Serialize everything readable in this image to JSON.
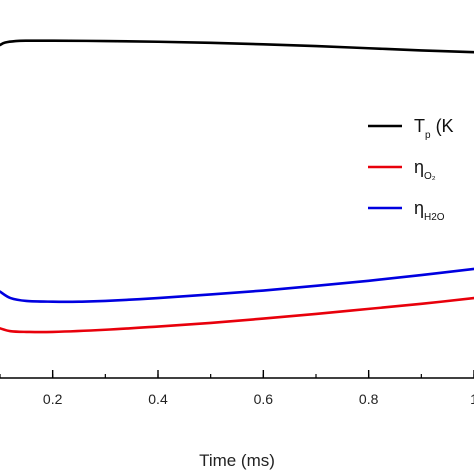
{
  "chart_data": {
    "type": "line",
    "xlabel": "Time (ms)",
    "xlim": [
      0.1,
      1.0
    ],
    "xticks": [
      {
        "value": 0.2,
        "label": "0.2"
      },
      {
        "value": 0.4,
        "label": "0.4"
      },
      {
        "value": 0.6,
        "label": "0.6"
      },
      {
        "value": 0.8,
        "label": "0.8"
      },
      {
        "value": 1.0,
        "label": "1"
      }
    ],
    "ylim": [
      0,
      1
    ],
    "legend_position": "right",
    "series": [
      {
        "key": "tp",
        "color": "#000000",
        "x": [
          0.1,
          0.11,
          0.13,
          0.15,
          0.2,
          0.3,
          0.4,
          0.5,
          0.6,
          0.7,
          0.8,
          0.9,
          1.0
        ],
        "y": [
          0.925,
          0.932,
          0.936,
          0.937,
          0.937,
          0.936,
          0.934,
          0.931,
          0.927,
          0.922,
          0.916,
          0.91,
          0.905
        ]
      },
      {
        "key": "o2",
        "color": "#e8000b",
        "x": [
          0.1,
          0.12,
          0.15,
          0.2,
          0.3,
          0.4,
          0.5,
          0.6,
          0.7,
          0.8,
          0.9,
          1.0
        ],
        "y": [
          0.138,
          0.13,
          0.128,
          0.128,
          0.134,
          0.143,
          0.153,
          0.165,
          0.178,
          0.192,
          0.206,
          0.222
        ]
      },
      {
        "key": "h2o",
        "color": "#0000e0",
        "x": [
          0.1,
          0.12,
          0.15,
          0.2,
          0.25,
          0.3,
          0.4,
          0.5,
          0.6,
          0.7,
          0.8,
          0.9,
          1.0
        ],
        "y": [
          0.24,
          0.222,
          0.214,
          0.212,
          0.212,
          0.214,
          0.222,
          0.232,
          0.243,
          0.256,
          0.27,
          0.286,
          0.303
        ]
      }
    ],
    "legend": [
      {
        "series": "tp",
        "symbol": "T",
        "sub": "p",
        "suffix": " (K"
      },
      {
        "series": "o2",
        "symbol": "η",
        "sub": "O₂",
        "suffix": ""
      },
      {
        "series": "h2o",
        "symbol": "η",
        "sub": "H2O",
        "suffix": ""
      }
    ]
  }
}
